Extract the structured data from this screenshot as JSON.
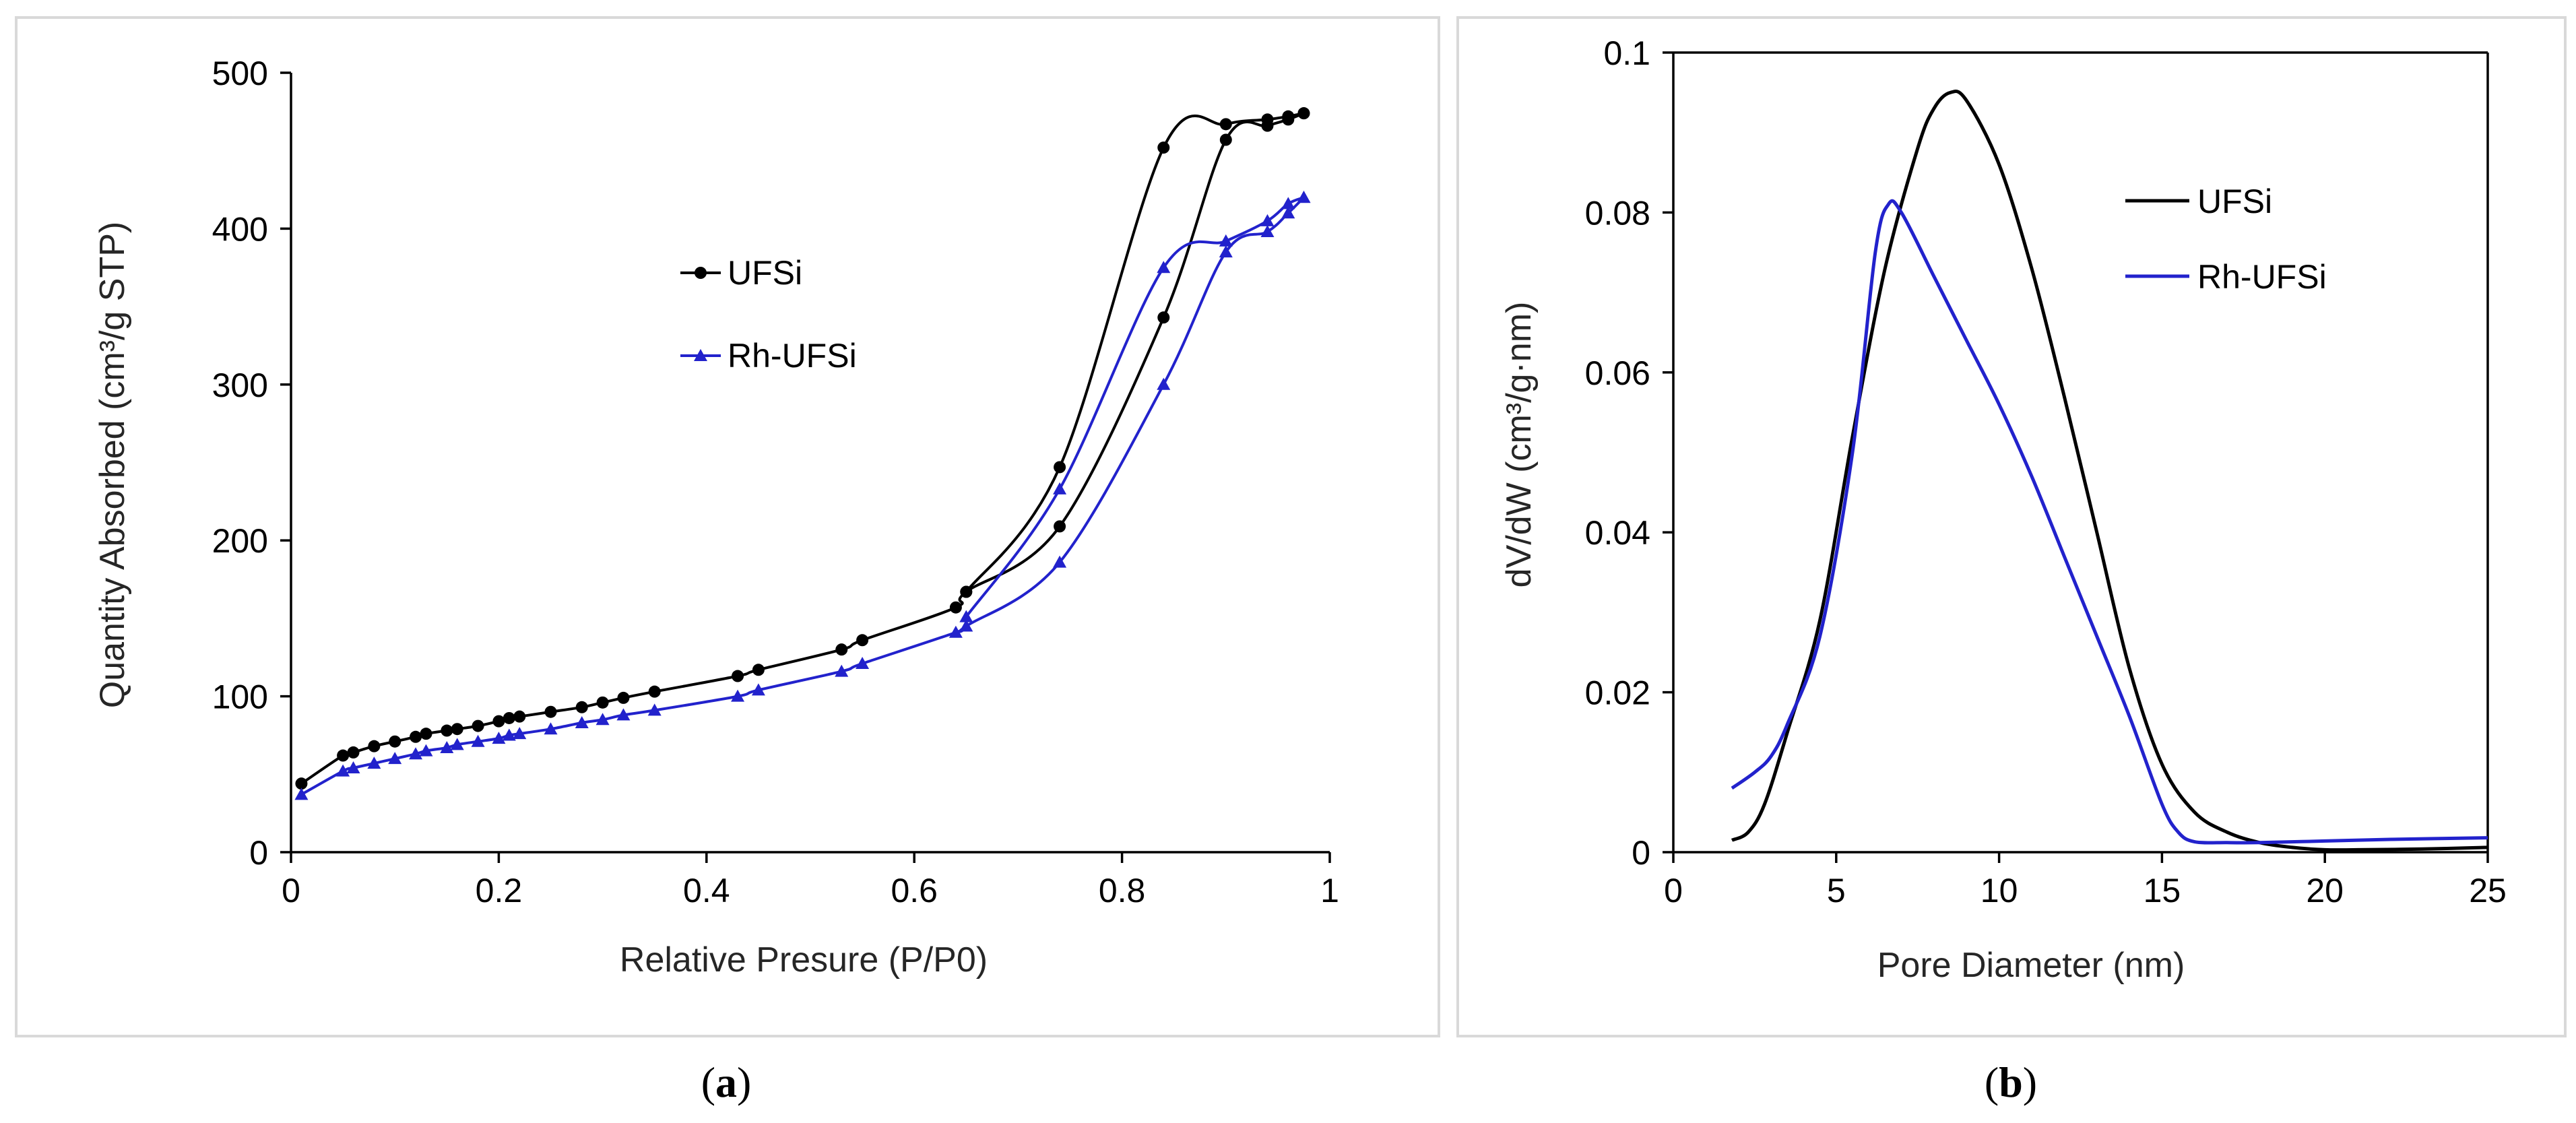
{
  "chart_data": [
    {
      "id": "a",
      "type": "line",
      "caption_open": "(",
      "caption_letter": "a",
      "caption_close": ")",
      "title": "",
      "xlabel": "Relative Presure (P/P0)",
      "ylabel": "Quantity Absorbed (cm³/g  STP)",
      "xlim": [
        0,
        1
      ],
      "ylim": [
        0,
        500
      ],
      "xticks": [
        0,
        0.2,
        0.4,
        0.6,
        0.8,
        1
      ],
      "xtick_labels": [
        "0",
        "0.2",
        "0.4",
        "0.6",
        "0.8",
        "1"
      ],
      "yticks": [
        0,
        100,
        200,
        300,
        400,
        500
      ],
      "ytick_labels": [
        "0",
        "100",
        "200",
        "300",
        "400",
        "500"
      ],
      "legend_position": "center",
      "series": [
        {
          "name": "UFSi",
          "color": "#000000",
          "marker": "circle",
          "x": [
            0.01,
            0.05,
            0.06,
            0.08,
            0.1,
            0.12,
            0.13,
            0.15,
            0.16,
            0.18,
            0.2,
            0.21,
            0.22,
            0.25,
            0.28,
            0.3,
            0.32,
            0.35,
            0.43,
            0.45,
            0.53,
            0.55,
            0.64,
            0.65,
            0.74,
            0.84,
            0.9,
            0.94,
            0.96,
            0.975
          ],
          "values": [
            44,
            62,
            64,
            68,
            71,
            74,
            76,
            78,
            79,
            81,
            84,
            86,
            87,
            90,
            93,
            96,
            99,
            103,
            113,
            117,
            130,
            136,
            157,
            167,
            209,
            343,
            457,
            466,
            470,
            474
          ],
          "desorption_x": [
            0.975,
            0.96,
            0.94,
            0.9,
            0.84,
            0.74,
            0.65
          ],
          "desorption_values": [
            474,
            472,
            470,
            467,
            452,
            247,
            167
          ]
        },
        {
          "name": "Rh-UFSi",
          "color": "#2222cc",
          "marker": "triangle",
          "x": [
            0.01,
            0.05,
            0.06,
            0.08,
            0.1,
            0.12,
            0.13,
            0.15,
            0.16,
            0.18,
            0.2,
            0.21,
            0.22,
            0.25,
            0.28,
            0.3,
            0.32,
            0.35,
            0.43,
            0.45,
            0.53,
            0.55,
            0.64,
            0.65,
            0.74,
            0.84,
            0.9,
            0.94,
            0.96,
            0.975
          ],
          "values": [
            37,
            52,
            54,
            57,
            60,
            63,
            65,
            67,
            69,
            71,
            73,
            75,
            76,
            79,
            83,
            85,
            88,
            91,
            100,
            104,
            116,
            121,
            141,
            145,
            186,
            300,
            385,
            398,
            410,
            420
          ],
          "desorption_x": [
            0.975,
            0.96,
            0.94,
            0.9,
            0.84,
            0.74,
            0.65
          ],
          "desorption_values": [
            420,
            416,
            405,
            392,
            375,
            233,
            151
          ]
        }
      ]
    },
    {
      "id": "b",
      "type": "line",
      "caption_open": "(",
      "caption_letter": "b",
      "caption_close": ")",
      "title": "",
      "xlabel": "Pore Diameter (nm)",
      "ylabel": "dV/dW (cm³/g·nm)",
      "xlim": [
        0,
        25
      ],
      "ylim": [
        0,
        0.1
      ],
      "xticks": [
        0,
        5,
        10,
        15,
        20,
        25
      ],
      "xtick_labels": [
        "0",
        "5",
        "10",
        "15",
        "20",
        "25"
      ],
      "yticks": [
        0,
        0.02,
        0.04,
        0.06,
        0.08,
        0.1
      ],
      "ytick_labels": [
        "0",
        "0.02",
        "0.04",
        "0.06",
        "0.08",
        "0.1"
      ],
      "legend_position": "top-right",
      "series": [
        {
          "name": "UFSi",
          "color": "#000000",
          "x": [
            1.8,
            2.3,
            2.8,
            3.5,
            4.5,
            5.5,
            6.5,
            7.5,
            8.0,
            8.5,
            9.0,
            10.0,
            11.0,
            12.0,
            13.0,
            14.0,
            15.0,
            16.0,
            17.0,
            18.0,
            19.0,
            20.0,
            21.0,
            23.0,
            25.0
          ],
          "values": [
            0.0015,
            0.0025,
            0.006,
            0.015,
            0.029,
            0.052,
            0.073,
            0.088,
            0.093,
            0.095,
            0.094,
            0.086,
            0.073,
            0.057,
            0.04,
            0.023,
            0.011,
            0.005,
            0.0025,
            0.0012,
            0.0006,
            0.0003,
            0.0003,
            0.0004,
            0.0006
          ]
        },
        {
          "name": "Rh-UFSi",
          "color": "#2222cc",
          "x": [
            1.8,
            2.5,
            3.0,
            3.5,
            4.5,
            5.5,
            6.2,
            6.6,
            7.0,
            8.0,
            9.0,
            10.0,
            11.0,
            12.0,
            13.0,
            14.0,
            15.0,
            15.5,
            16.0,
            17.0,
            18.0,
            20.0,
            22.0,
            25.0
          ],
          "values": [
            0.008,
            0.01,
            0.012,
            0.016,
            0.027,
            0.05,
            0.075,
            0.081,
            0.08,
            0.072,
            0.064,
            0.056,
            0.047,
            0.037,
            0.027,
            0.017,
            0.006,
            0.0025,
            0.0013,
            0.0012,
            0.0012,
            0.0014,
            0.0016,
            0.0018
          ]
        }
      ]
    }
  ]
}
